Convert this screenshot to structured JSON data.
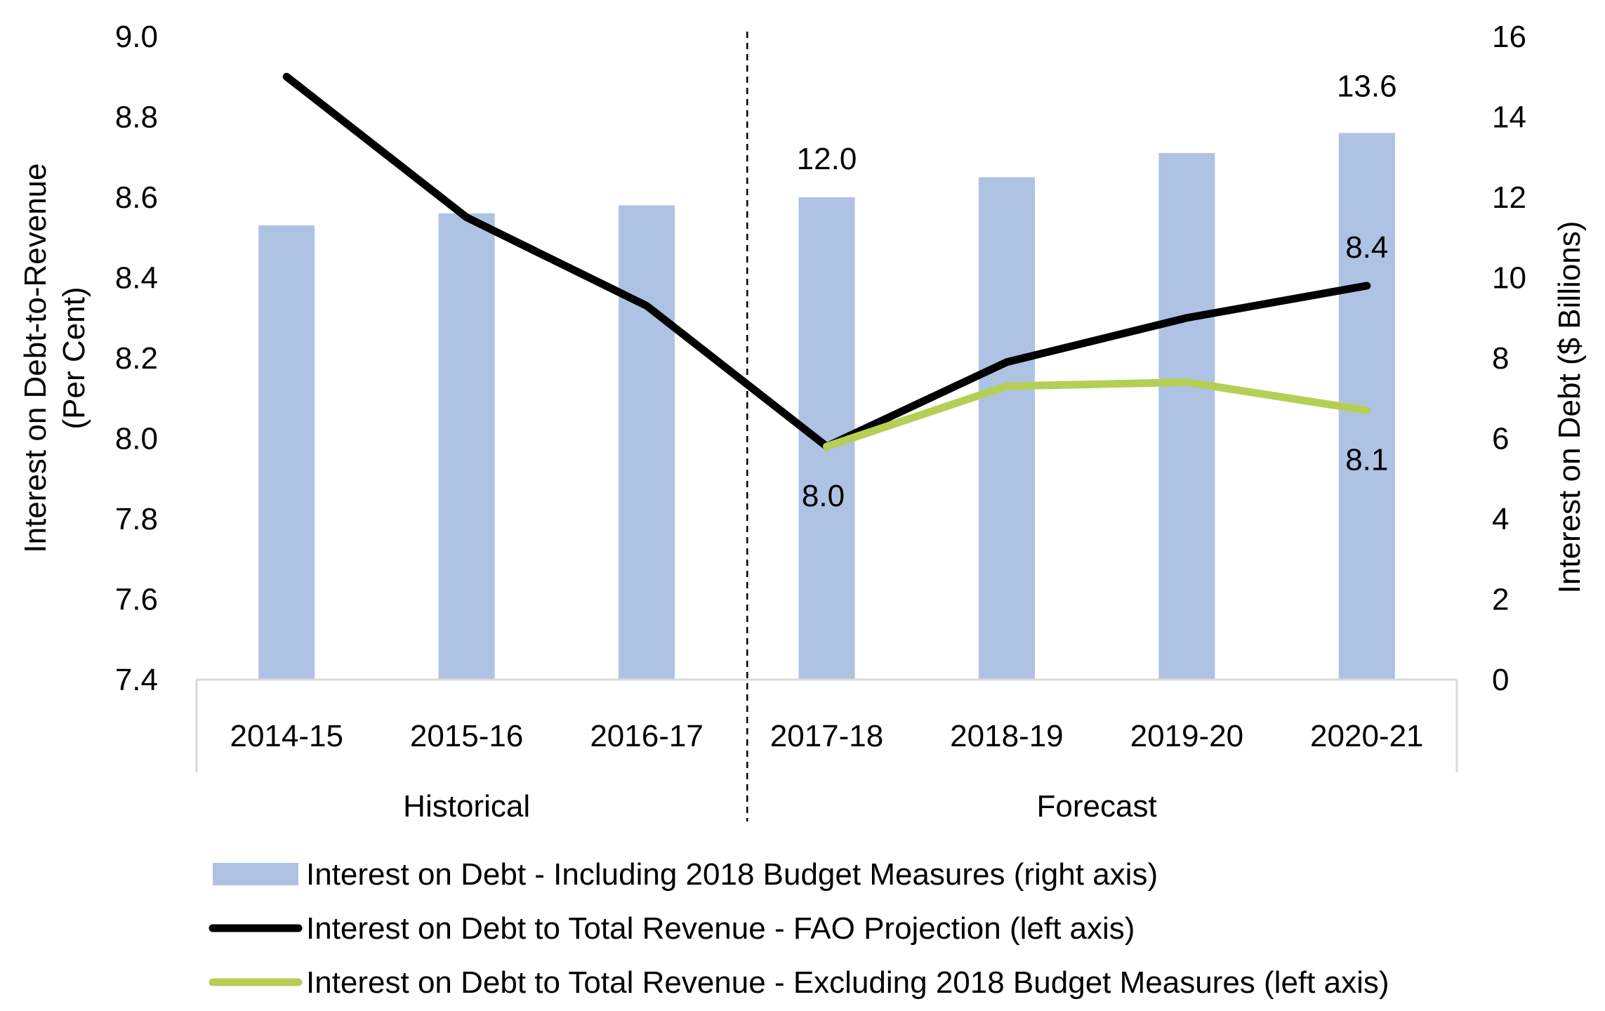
{
  "chart_data": {
    "type": "bar",
    "categories": [
      "2014-15",
      "2015-16",
      "2016-17",
      "2017-18",
      "2018-19",
      "2019-20",
      "2020-21"
    ],
    "groups": [
      {
        "label": "Historical",
        "categories": [
          "2014-15",
          "2015-16",
          "2016-17"
        ]
      },
      {
        "label": "Forecast",
        "categories": [
          "2017-18",
          "2018-19",
          "2019-20",
          "2020-21"
        ]
      }
    ],
    "left_axis": {
      "label": "Interest on Debt-to-Revenue (Per Cent)",
      "label_lines": [
        "Interest on Debt-to-Revenue",
        "(Per Cent)"
      ],
      "ylim": [
        7.4,
        9.0
      ],
      "ticks": [
        "9.0",
        "8.8",
        "8.6",
        "8.4",
        "8.2",
        "8.0",
        "7.8",
        "7.6",
        "7.4"
      ]
    },
    "right_axis": {
      "label": "Interest on Debt ($ Billions)",
      "ylim": [
        0,
        16
      ],
      "ticks": [
        "16",
        "14",
        "12",
        "10",
        "8",
        "6",
        "4",
        "2",
        "0"
      ]
    },
    "series": [
      {
        "name": "Interest on Debt - Including 2018 Budget Measures (right axis)",
        "kind": "bar",
        "axis": "right",
        "color": "#aec2e4",
        "values": [
          11.3,
          11.6,
          11.8,
          12.0,
          12.5,
          13.1,
          13.6
        ]
      },
      {
        "name": "Interest on Debt to Total Revenue - FAO Projection (left axis)",
        "kind": "line",
        "axis": "left",
        "color": "#000000",
        "values": [
          8.9,
          8.55,
          8.33,
          7.98,
          8.19,
          8.3,
          8.38
        ]
      },
      {
        "name": "Interest on Debt to Total Revenue - Excluding 2018 Budget Measures (left axis)",
        "kind": "line",
        "axis": "left",
        "color": "#b5cf55",
        "values": [
          null,
          null,
          null,
          7.98,
          8.13,
          8.14,
          8.07
        ]
      }
    ],
    "annotations": [
      {
        "text": "12.0",
        "series": 0,
        "index": 3
      },
      {
        "text": "13.6",
        "series": 0,
        "index": 6
      },
      {
        "text": "8.4",
        "series": 1,
        "index": 6
      },
      {
        "text": "8.0",
        "series": 1,
        "index": 3
      },
      {
        "text": "8.1",
        "series": 2,
        "index": 6
      }
    ],
    "divider": "dashed vertical line between 2016-17 and 2017-18",
    "legend_position": "bottom",
    "grid": false
  }
}
